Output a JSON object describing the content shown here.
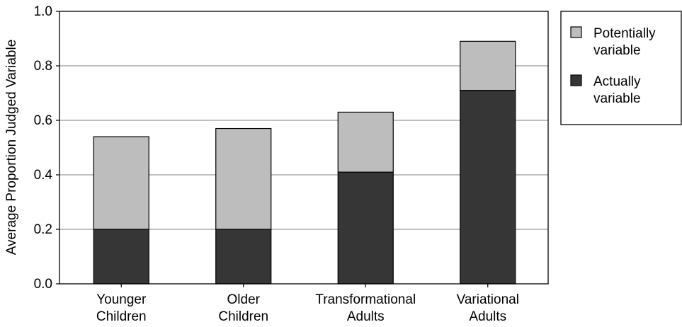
{
  "chart_data": {
    "type": "bar",
    "stacked": true,
    "title": "",
    "xlabel": "",
    "ylabel": "Average Proportion Judged Variable",
    "ylim": [
      0,
      1.0
    ],
    "yticks": [
      "0.0",
      "0.2",
      "0.4",
      "0.6",
      "0.8",
      "1.0"
    ],
    "grid": true,
    "legend_position": "right",
    "categories": [
      [
        "Younger",
        "Children"
      ],
      [
        "Older",
        "Children"
      ],
      [
        "Transformational",
        "Adults"
      ],
      [
        "Variational",
        "Adults"
      ]
    ],
    "series": [
      {
        "key": "actual",
        "legend_lines": [
          "Actually",
          "variable"
        ],
        "color": "#363636",
        "values": [
          0.2,
          0.2,
          0.41,
          0.71
        ]
      },
      {
        "key": "potential",
        "legend_lines": [
          "Potentially",
          "variable"
        ],
        "color": "#bdbdbd",
        "values": [
          0.34,
          0.37,
          0.22,
          0.18
        ]
      }
    ],
    "legend_order": [
      "potential",
      "actual"
    ]
  }
}
